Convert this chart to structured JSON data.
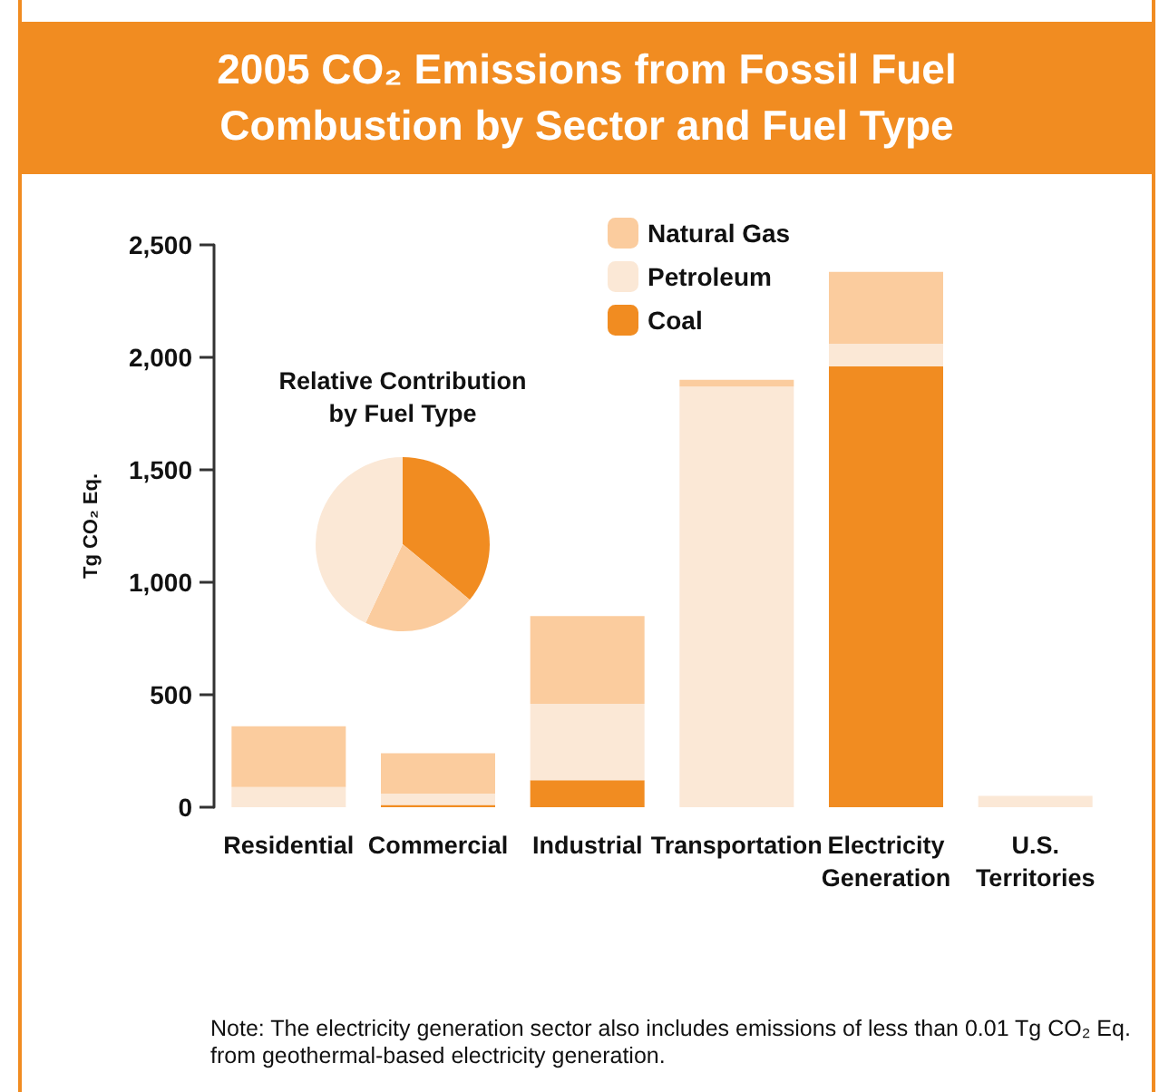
{
  "chart_data": [
    {
      "type": "bar",
      "title": "2005 CO₂ Emissions from Fossil Fuel Combustion by Sector and Fuel Type",
      "ylabel": "Tg CO₂ Eq.",
      "categories": [
        "Residential",
        "Commercial",
        "Industrial",
        "Transportation",
        "Electricity\nGeneration",
        "U.S.\nTerritories"
      ],
      "stacked": true,
      "series": [
        {
          "name": "Coal",
          "color": "#f18c21",
          "values": [
            0,
            10,
            120,
            0,
            1960,
            0
          ]
        },
        {
          "name": "Petroleum",
          "color": "#fbe8d6",
          "values": [
            90,
            50,
            340,
            1870,
            100,
            50
          ]
        },
        {
          "name": "Natural Gas",
          "color": "#fbcc9e",
          "values": [
            270,
            180,
            390,
            30,
            320,
            0
          ]
        }
      ],
      "ylim": [
        0,
        2500
      ],
      "yticks": [
        0,
        500,
        {
          "value": 1000,
          "label": "1,000"
        },
        {
          "value": 1500,
          "label": "1,500"
        },
        {
          "value": 2000,
          "label": "2,000"
        },
        {
          "value": 2500,
          "label": "2,500"
        }
      ],
      "grid": false,
      "legend": "top",
      "annotations": [
        "Note: The electricity generation sector also includes emissions of less than 0.01 Tg CO₂ Eq.\nfrom geothermal-based electricity generation."
      ]
    },
    {
      "type": "pie",
      "title": "Relative Contribution\nby Fuel Type",
      "categories": [
        null,
        null,
        null
      ],
      "values": [
        36,
        21,
        43
      ],
      "colors": [
        "#f18c21",
        "#fbcc9e",
        "#fbe8d6"
      ]
    }
  ]
}
